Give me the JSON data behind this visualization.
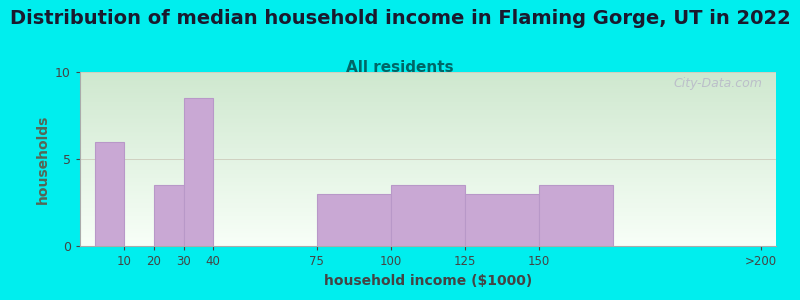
{
  "title": "Distribution of median household income in Flaming Gorge, UT in 2022",
  "subtitle": "All residents",
  "xlabel": "household income ($1000)",
  "ylabel": "households",
  "tick_positions": [
    0,
    10,
    20,
    30,
    40,
    75,
    100,
    125,
    150,
    175,
    225
  ],
  "tick_labels": [
    "",
    "10",
    "20",
    "30",
    "40",
    "75",
    "100",
    "125",
    "150",
    "",
    ">200"
  ],
  "bar_left_edges": [
    0,
    20,
    30,
    40,
    75,
    100,
    125,
    150,
    175
  ],
  "bar_right_edges": [
    10,
    30,
    40,
    75,
    100,
    125,
    150,
    175,
    225
  ],
  "bar_values": [
    6,
    3.5,
    8.5,
    0,
    3,
    3.5,
    3,
    3.5,
    0
  ],
  "bar_color": "#c9a8d4",
  "bar_edgecolor": "#b898c8",
  "ylim": [
    0,
    10
  ],
  "yticks": [
    0,
    5,
    10
  ],
  "xlim": [
    -5,
    230
  ],
  "background_color": "#00eeee",
  "plot_bg_top": "#cfe8cf",
  "plot_bg_bottom": "#f8fff8",
  "title_fontsize": 14,
  "subtitle_fontsize": 11,
  "subtitle_color": "#006666",
  "axis_label_fontsize": 10,
  "watermark_text": "City-Data.com",
  "watermark_color": "#b8b8c8",
  "grid_color": "#d0d0c0",
  "grid_linewidth": 0.7,
  "ylabel_color": "#556655",
  "xlabel_color": "#444444"
}
